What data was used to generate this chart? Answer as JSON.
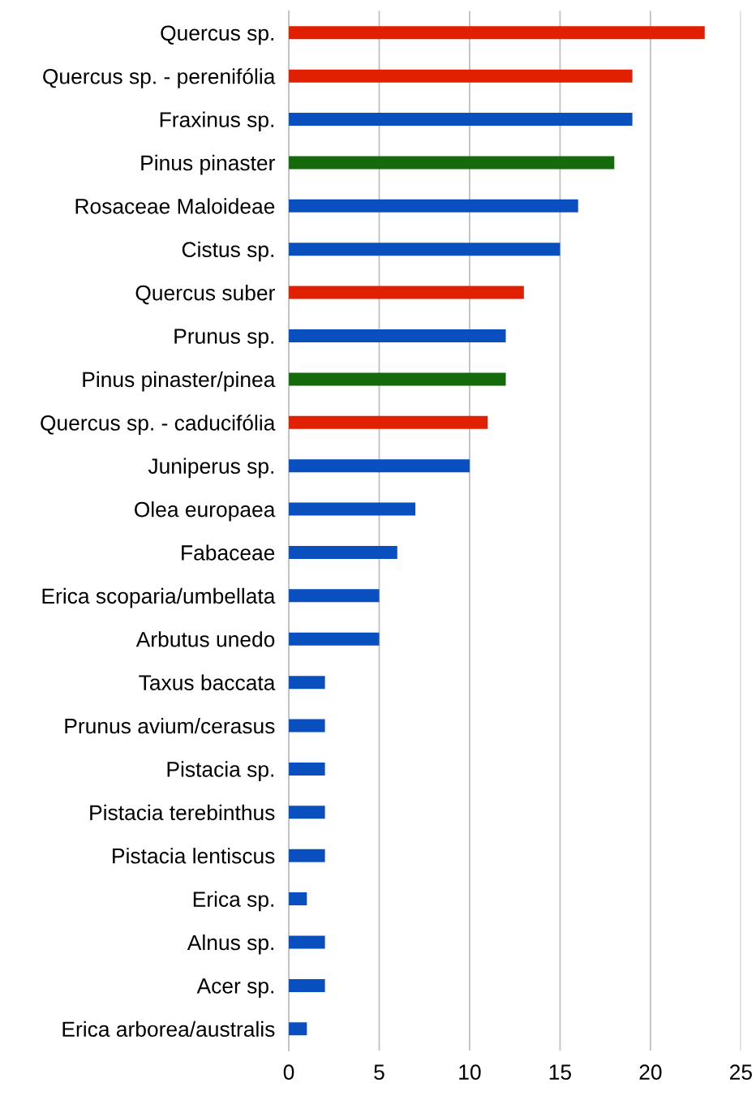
{
  "chart_data": {
    "type": "bar",
    "orientation": "horizontal",
    "categories": [
      "Quercus sp.",
      "Quercus sp. - perenifólia",
      "Fraxinus sp.",
      "Pinus pinaster",
      "Rosaceae Maloideae",
      "Cistus sp.",
      "Quercus suber",
      "Prunus sp.",
      "Pinus pinaster/pinea",
      "Quercus sp. - caducifólia",
      "Juniperus sp.",
      "Olea europaea",
      "Fabaceae",
      "Erica scoparia/umbellata",
      "Arbutus unedo",
      "Taxus baccata",
      "Prunus avium/cerasus",
      "Pistacia sp.",
      "Pistacia terebinthus",
      "Pistacia lentiscus",
      "Erica sp.",
      "Alnus sp.",
      "Acer sp.",
      "Erica arborea/australis"
    ],
    "values": [
      23,
      19,
      19,
      18,
      16,
      15,
      13,
      12,
      12,
      11,
      10,
      7,
      6,
      5,
      5,
      2,
      2,
      2,
      2,
      2,
      1,
      2,
      2,
      1
    ],
    "colors": [
      "#e02000",
      "#e02000",
      "#0a4fbf",
      "#156b0c",
      "#0a4fbf",
      "#0a4fbf",
      "#e02000",
      "#0a4fbf",
      "#156b0c",
      "#e02000",
      "#0a4fbf",
      "#0a4fbf",
      "#0a4fbf",
      "#0a4fbf",
      "#0a4fbf",
      "#0a4fbf",
      "#0a4fbf",
      "#0a4fbf",
      "#0a4fbf",
      "#0a4fbf",
      "#0a4fbf",
      "#0a4fbf",
      "#0a4fbf",
      "#0a4fbf"
    ],
    "xlim": [
      0,
      25
    ],
    "xticks": [
      0,
      5,
      10,
      15,
      20,
      25
    ],
    "grid": "x",
    "legend": false
  }
}
